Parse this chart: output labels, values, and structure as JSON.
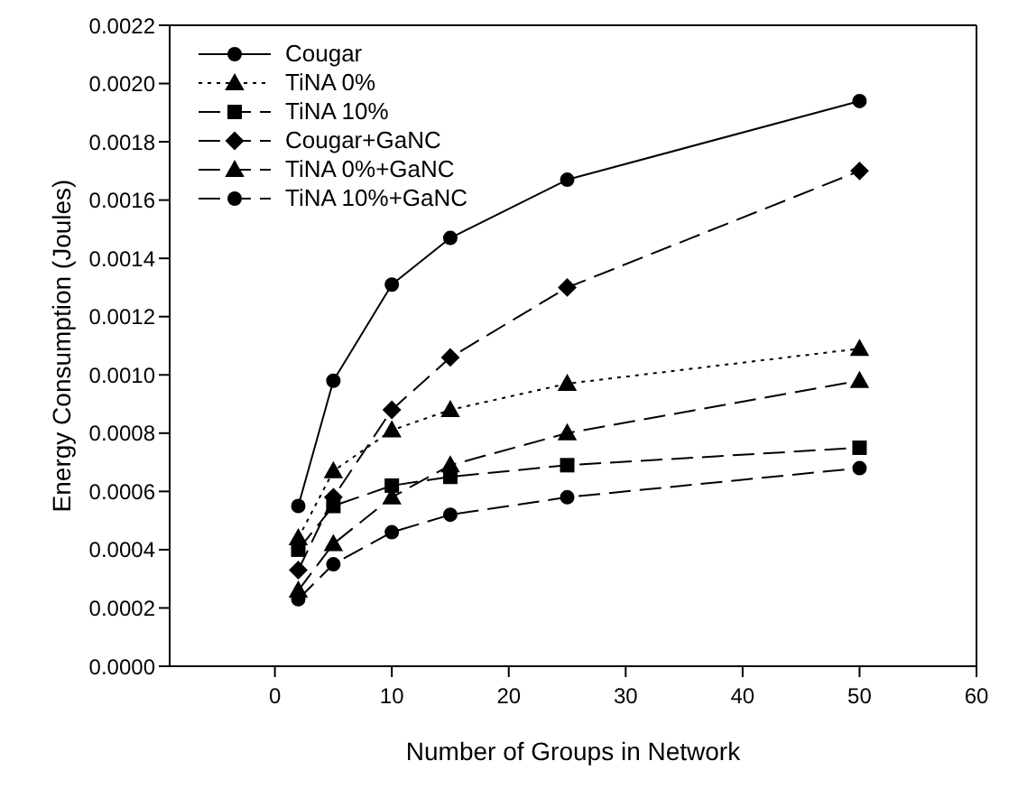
{
  "chart_data": {
    "type": "line",
    "xlabel": "Number of Groups in Network",
    "ylabel": "Energy Consumption (Joules)",
    "x": [
      2,
      5,
      10,
      15,
      25,
      50
    ],
    "series": [
      {
        "name": "Cougar",
        "color": "#000000",
        "marker": "circle",
        "line_style": "solid",
        "values": [
          0.00055,
          0.00098,
          0.00131,
          0.00147,
          0.00167,
          0.00194
        ]
      },
      {
        "name": "TiNA 0%",
        "color": "#000000",
        "marker": "triangle",
        "line_style": "dotted",
        "values": [
          0.00044,
          0.00067,
          0.00081,
          0.00088,
          0.00097,
          0.00109
        ]
      },
      {
        "name": "TiNA 10%",
        "color": "#000000",
        "marker": "square",
        "line_style": "dashed",
        "values": [
          0.0004,
          0.00055,
          0.00062,
          0.00065,
          0.00069,
          0.00075
        ]
      },
      {
        "name": "Cougar+GaNC",
        "color": "#000000",
        "marker": "diamond",
        "line_style": "dashed",
        "values": [
          0.00033,
          0.00058,
          0.00088,
          0.00106,
          0.0013,
          0.0017
        ]
      },
      {
        "name": "TiNA 0%+GaNC",
        "color": "#000000",
        "marker": "triangle",
        "line_style": "dashed",
        "values": [
          0.00026,
          0.00042,
          0.00058,
          0.00069,
          0.0008,
          0.00098
        ]
      },
      {
        "name": "TiNA 10%+GaNC",
        "color": "#000000",
        "marker": "circle",
        "line_style": "dashed",
        "values": [
          0.00023,
          0.00035,
          0.00046,
          0.00052,
          0.00058,
          0.00068
        ]
      }
    ],
    "xlim": [
      -9,
      60
    ],
    "xticks": [
      0,
      10,
      20,
      30,
      40,
      50,
      60
    ],
    "ylim": [
      0,
      0.0022
    ],
    "yticks": [
      {
        "value": 0,
        "label": "0.0000"
      },
      {
        "value": 0.0002,
        "label": "0.0002"
      },
      {
        "value": 0.0004,
        "label": "0.0004"
      },
      {
        "value": 0.0006,
        "label": "0.0006"
      },
      {
        "value": 0.0008,
        "label": "0.0008"
      },
      {
        "value": 0.001,
        "label": "0.0010"
      },
      {
        "value": 0.0012,
        "label": "0.0012"
      },
      {
        "value": 0.0014,
        "label": "0.0014"
      },
      {
        "value": 0.0016,
        "label": "0.0016"
      },
      {
        "value": 0.0018,
        "label": "0.0018"
      },
      {
        "value": 0.002,
        "label": "0.0020"
      },
      {
        "value": 0.0022,
        "label": "0.0022"
      }
    ],
    "grid": false,
    "legend": "top left"
  }
}
